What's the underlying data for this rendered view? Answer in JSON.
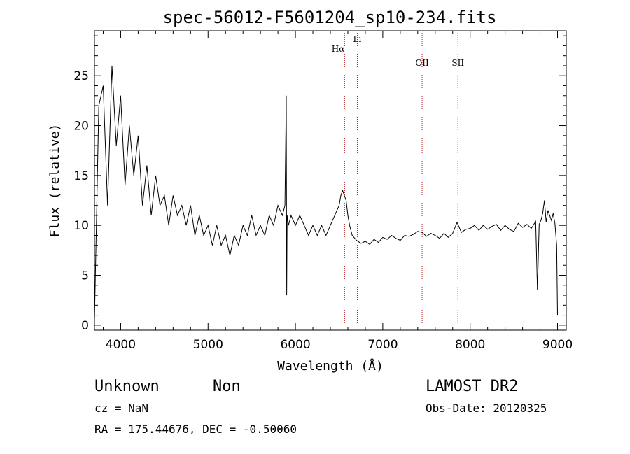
{
  "chart_data": {
    "type": "line",
    "title": "spec-56012-F5601204_sp10-234.fits",
    "xlabel": "Wavelength (Å)",
    "ylabel": "Flux (relative)",
    "xlim": [
      3700,
      9100
    ],
    "ylim": [
      -0.5,
      29.5
    ],
    "xticks": [
      4000,
      5000,
      6000,
      7000,
      8000,
      9000
    ],
    "yticks": [
      0,
      5,
      10,
      15,
      20,
      25
    ],
    "grid": false,
    "series": [
      {
        "x": [
          3700,
          3750,
          3800,
          3850,
          3900,
          3950,
          4000,
          4050,
          4100,
          4150,
          4200,
          4250,
          4300,
          4350,
          4400,
          4450,
          4500,
          4550,
          4600,
          4650,
          4700,
          4750,
          4800,
          4850,
          4900,
          4950,
          5000,
          5050,
          5100,
          5150,
          5200,
          5250,
          5300,
          5350,
          5400,
          5450,
          5500,
          5550,
          5600,
          5650,
          5700,
          5750,
          5800,
          5850,
          5880,
          5895,
          5900,
          5905,
          5920,
          5950,
          6000,
          6050,
          6100,
          6150,
          6200,
          6250,
          6300,
          6350,
          6400,
          6450,
          6500,
          6520,
          6540,
          6560,
          6580,
          6600,
          6620,
          6650,
          6700,
          6750,
          6800,
          6850,
          6900,
          6950,
          7000,
          7050,
          7100,
          7150,
          7200,
          7250,
          7300,
          7350,
          7400,
          7450,
          7500,
          7550,
          7600,
          7650,
          7700,
          7750,
          7800,
          7850,
          7900,
          7950,
          8000,
          8050,
          8100,
          8150,
          8200,
          8250,
          8300,
          8350,
          8400,
          8450,
          8500,
          8550,
          8600,
          8650,
          8700,
          8750,
          8770,
          8790,
          8810,
          8830,
          8850,
          8870,
          8890,
          8910,
          8930,
          8950,
          8970,
          8990,
          9000
        ],
        "y": [
          0.5,
          22,
          24,
          12,
          26,
          18,
          23,
          14,
          20,
          15,
          19,
          12,
          16,
          11,
          15,
          12,
          13,
          10,
          13,
          11,
          12,
          10,
          12,
          9,
          11,
          9,
          10,
          8,
          10,
          8,
          9,
          7,
          9,
          8,
          10,
          9,
          11,
          9,
          10,
          9,
          11,
          10,
          12,
          11,
          12,
          23,
          3,
          11,
          10,
          11,
          10,
          11,
          10,
          9,
          10,
          9,
          10,
          9,
          10,
          11,
          12,
          13,
          13.5,
          13,
          12.5,
          11,
          10,
          9,
          8.5,
          8.2,
          8.4,
          8.1,
          8.6,
          8.3,
          8.8,
          8.6,
          9,
          8.7,
          8.5,
          9,
          8.9,
          9.1,
          9.4,
          9.3,
          8.9,
          9.2,
          9,
          8.7,
          9.2,
          8.8,
          9.2,
          10.3,
          9.3,
          9.6,
          9.7,
          10,
          9.5,
          10,
          9.6,
          9.9,
          10.1,
          9.5,
          10,
          9.6,
          9.4,
          10.2,
          9.8,
          10.1,
          9.7,
          10.4,
          3.5,
          10.1,
          10.5,
          11.2,
          12.5,
          10.3,
          11.5,
          11,
          10.5,
          11.2,
          10.2,
          8,
          1
        ]
      }
    ],
    "vlines": [
      {
        "x": 6563,
        "label": "Hα"
      },
      {
        "x": 6708,
        "label": "Li"
      },
      {
        "x": 7450,
        "label": "OII"
      },
      {
        "x": 7860,
        "label": "SII"
      }
    ],
    "colors": {
      "line": "#000000",
      "vline": "#b22222"
    }
  },
  "info": {
    "class": "Unknown",
    "subclass": "Non",
    "survey": "LAMOST DR2",
    "cz": "cz = NaN",
    "obs_date": "Obs-Date: 20120325",
    "coords": "RA = 175.44676, DEC =  -0.50060"
  }
}
